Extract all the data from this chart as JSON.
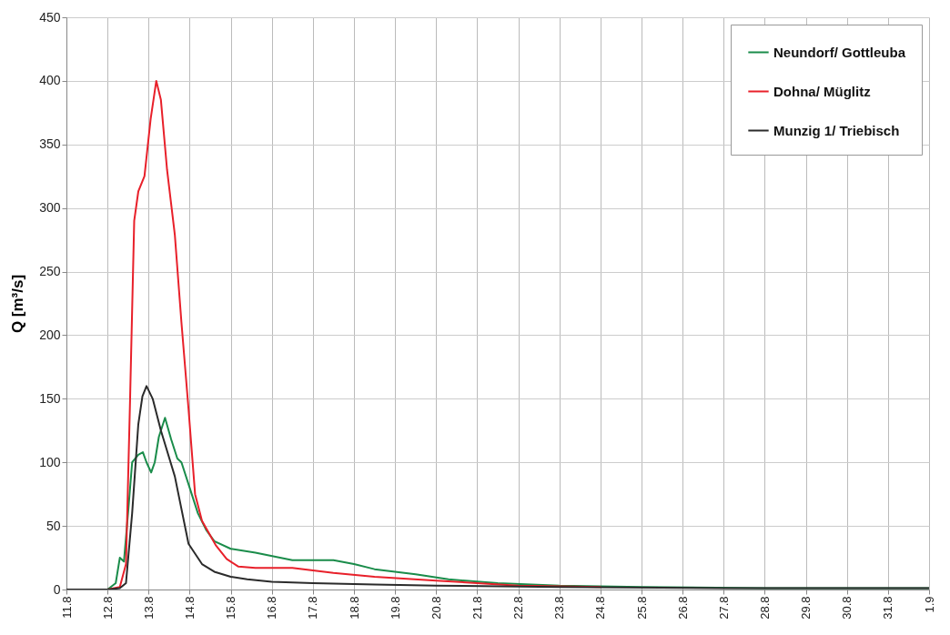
{
  "chart_data": {
    "type": "line",
    "ylabel": "Q [m³/s]",
    "xlim": [
      "--08-11",
      "--09-01"
    ],
    "xticks": [
      {
        "value": "--08-11",
        "label": "11.8"
      },
      {
        "value": "--08-12",
        "label": "12.8"
      },
      {
        "value": "--08-13",
        "label": "13.8"
      },
      {
        "value": "--08-14",
        "label": "14.8"
      },
      {
        "value": "--08-15",
        "label": "15.8"
      },
      {
        "value": "--08-16",
        "label": "16.8"
      },
      {
        "value": "--08-17",
        "label": "17.8"
      },
      {
        "value": "--08-18",
        "label": "18.8"
      },
      {
        "value": "--08-19",
        "label": "19.8"
      },
      {
        "value": "--08-20",
        "label": "20.8"
      },
      {
        "value": "--08-21",
        "label": "21.8"
      },
      {
        "value": "--08-22",
        "label": "22.8"
      },
      {
        "value": "--08-23",
        "label": "23.8"
      },
      {
        "value": "--08-24",
        "label": "24.8"
      },
      {
        "value": "--08-25",
        "label": "25.8"
      },
      {
        "value": "--08-26",
        "label": "26.8"
      },
      {
        "value": "--08-27",
        "label": "27.8"
      },
      {
        "value": "--08-28",
        "label": "28.8"
      },
      {
        "value": "--08-29",
        "label": "29.8"
      },
      {
        "value": "--08-30",
        "label": "30.8"
      },
      {
        "value": "--08-31",
        "label": "31.8"
      },
      {
        "value": "--09-01",
        "label": "1.9"
      }
    ],
    "ylim": [
      0,
      450
    ],
    "yticks": [
      0,
      50,
      100,
      150,
      200,
      250,
      300,
      350,
      400,
      450
    ],
    "grid": true,
    "legend": "top right",
    "marker": "none",
    "line_style": "solid",
    "series": [
      {
        "name": "Neundorf/ Gottleuba",
        "color": "#1a8c4a",
        "x": [
          "--08-11",
          "--08-12",
          "--08-12T04:48",
          "--08-12T07:12",
          "--08-12T09:36",
          "--08-12T12:00",
          "--08-12T14:24",
          "--08-12T18:00",
          "--08-12T20:40",
          "--08-12T22:48",
          "--08-13T01:30",
          "--08-13T03:36",
          "--08-13T06:00",
          "--08-13T09:36",
          "--08-13T13:12",
          "--08-13T16:48",
          "--08-13T19:12",
          "--08-14",
          "--08-14T04:48",
          "--08-14T09:36",
          "--08-14T14:24",
          "--08-15",
          "--08-15T14:24",
          "--08-16T12:00",
          "--08-17",
          "--08-17T12:00",
          "--08-18",
          "--08-18T12:00",
          "--08-19T12:00",
          "--08-20T07:12",
          "--08-21T12:00",
          "--08-23",
          "--08-25",
          "--08-28",
          "--09-01"
        ],
        "values": [
          0,
          0,
          5,
          25,
          22,
          60,
          100,
          106,
          108,
          100,
          92,
          100,
          120,
          135,
          118,
          103,
          100,
          80,
          60,
          47,
          38,
          32,
          29,
          23,
          23,
          23,
          20,
          16,
          12,
          8,
          5,
          3,
          2,
          1,
          1
        ]
      },
      {
        "name": "Dohna/ Müglitz",
        "color": "#e8202a",
        "x": [
          "--08-11",
          "--08-12",
          "--08-12T07:12",
          "--08-12T10:48",
          "--08-12T13:12",
          "--08-12T15:36",
          "--08-12T18:00",
          "--08-12T21:36",
          "--08-13T01:12",
          "--08-13T04:30",
          "--08-13T07:12",
          "--08-13T10:48",
          "--08-13T15:20",
          "--08-13T19:12",
          "--08-13T23:20",
          "--08-14T03:10",
          "--08-14T07:12",
          "--08-14T15:10",
          "--08-14T21:36",
          "--08-15T04:30",
          "--08-15T14:24",
          "--08-16",
          "--08-16T12:00",
          "--08-17",
          "--08-17T12:00",
          "--08-18T12:00",
          "--08-20",
          "--08-22",
          "--08-24"
        ],
        "values": [
          0,
          0,
          2,
          20,
          150,
          290,
          313,
          325,
          370,
          400,
          385,
          330,
          279,
          210,
          142,
          75,
          54,
          35,
          24,
          18,
          17,
          17,
          17,
          15,
          13,
          10,
          7,
          3,
          2
        ]
      },
      {
        "name": "Munzig 1/ Triebisch",
        "color": "#2b2b2b",
        "x": [
          "--08-11",
          "--08-12",
          "--08-12T07:12",
          "--08-12T10:48",
          "--08-12T14:24",
          "--08-12T18:00",
          "--08-12T20:24",
          "--08-12T22:48",
          "--08-13T02:24",
          "--08-13T07:12",
          "--08-13T15:20",
          "--08-13T23:20",
          "--08-14T07:12",
          "--08-14T14:24",
          "--08-15",
          "--08-15T09:36",
          "--08-16",
          "--08-17",
          "--08-18T12:00",
          "--08-20",
          "--08-23",
          "--08-27",
          "--09-01"
        ],
        "values": [
          0,
          0,
          1,
          5,
          60,
          130,
          152,
          160,
          150,
          125,
          89,
          36,
          20,
          14,
          10,
          8,
          6,
          5,
          4,
          3,
          2,
          1,
          1
        ]
      }
    ]
  }
}
